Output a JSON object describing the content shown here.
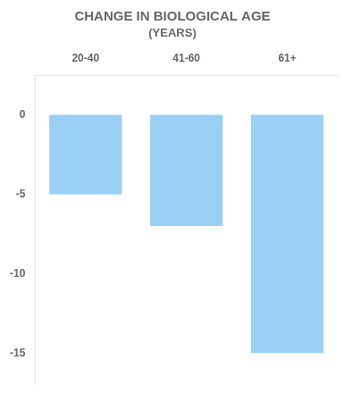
{
  "chart_data": {
    "type": "bar",
    "title": "CHANGE IN BIOLOGICAL AGE",
    "subtitle": "(YEARS)",
    "categories": [
      "20-40",
      "41-60",
      "61+"
    ],
    "values": [
      -5,
      -7,
      -15
    ],
    "ylim": [
      -17,
      2.5
    ],
    "yticks": [
      0,
      -5,
      -10,
      -15
    ],
    "grid": false
  }
}
